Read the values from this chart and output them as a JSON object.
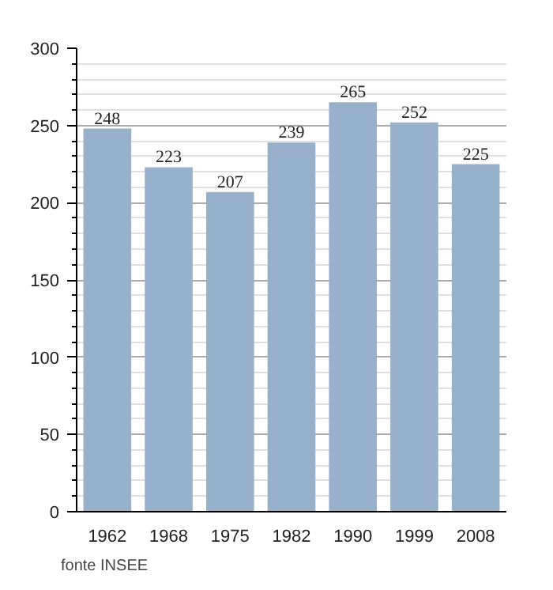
{
  "chart_data": {
    "type": "bar",
    "categories": [
      "1962",
      "1968",
      "1975",
      "1982",
      "1990",
      "1999",
      "2008"
    ],
    "values": [
      248,
      223,
      207,
      239,
      265,
      252,
      225
    ],
    "color": "#97b1cb",
    "ylim": [
      0,
      300
    ],
    "yticks": [
      0,
      50,
      100,
      150,
      200,
      250,
      300
    ],
    "grid": "y",
    "data_labels": true,
    "annotations": [
      "fonte INSEE"
    ]
  }
}
